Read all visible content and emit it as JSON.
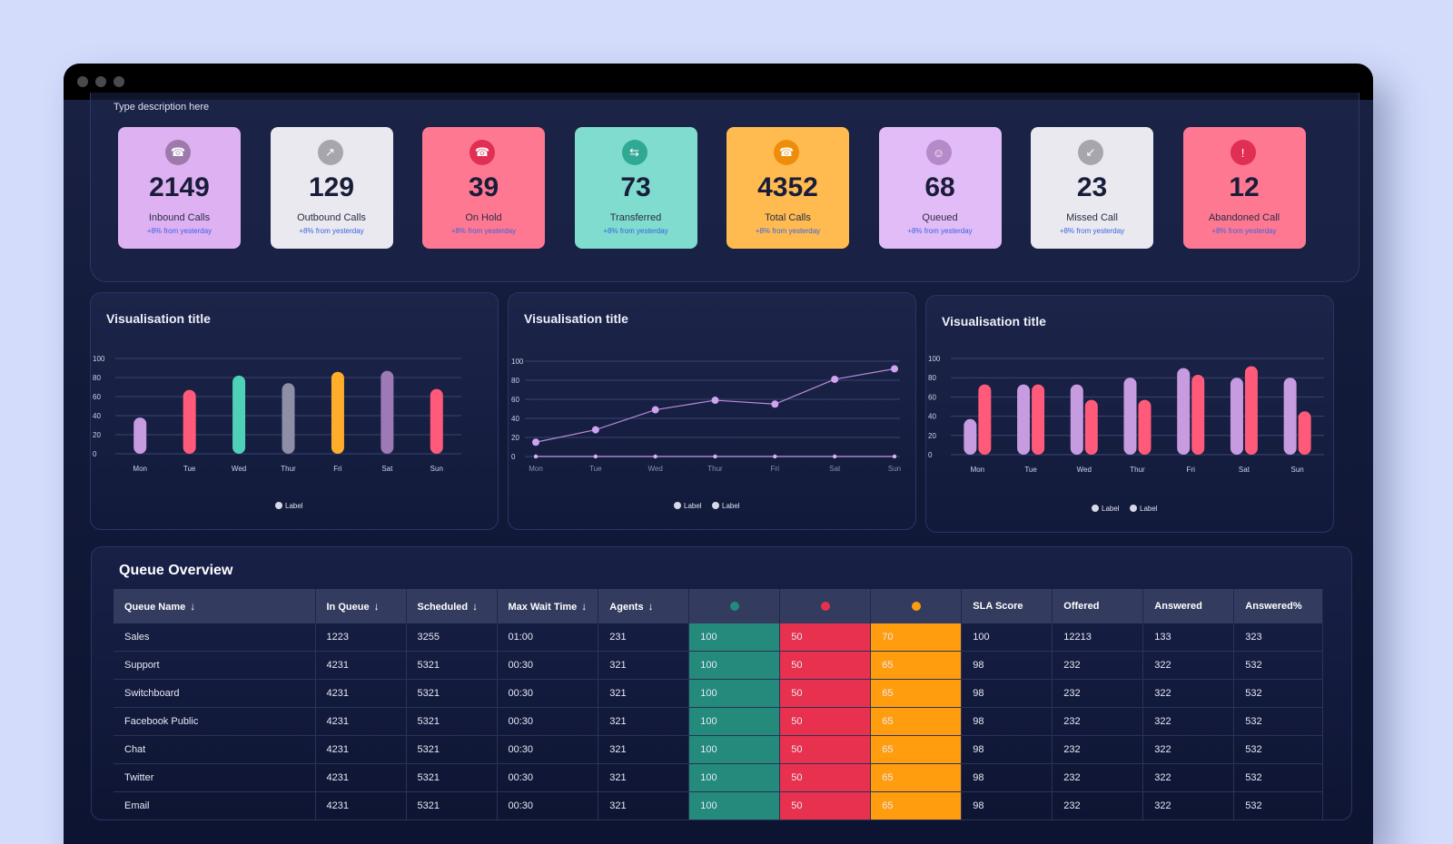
{
  "description": "Type description here",
  "kpis": [
    {
      "value": "2149",
      "label": "Inbound Calls",
      "sub": "+8% from yesterday",
      "bg": "#deb1f3",
      "icon_bg": "#9d7aab",
      "icon": "phone-icon"
    },
    {
      "value": "129",
      "label": "Outbound Calls",
      "sub": "+8% from yesterday",
      "bg": "#e9e9ef",
      "icon_bg": "#a7a6ae",
      "icon": "phone-outgoing-icon"
    },
    {
      "value": "39",
      "label": "On Hold",
      "sub": "+8% from yesterday",
      "bg": "#ff7891",
      "icon_bg": "#e02f52",
      "icon": "phone-hold-icon"
    },
    {
      "value": "73",
      "label": "Transferred",
      "sub": "+8% from yesterday",
      "bg": "#7fdcce",
      "icon_bg": "#2fa894",
      "icon": "transfer-icon"
    },
    {
      "value": "4352",
      "label": "Total Calls",
      "sub": "+8% from yesterday",
      "bg": "#ffbb50",
      "icon_bg": "#ee8d0b",
      "icon": "phone-icon"
    },
    {
      "value": "68",
      "label": "Queued",
      "sub": "+8% from yesterday",
      "bg": "#e2bcf7",
      "icon_bg": "#b58ac9",
      "icon": "users-icon"
    },
    {
      "value": "23",
      "label": "Missed Call",
      "sub": "+8% from yesterday",
      "bg": "#e9e9ef",
      "icon_bg": "#a7a6ae",
      "icon": "phone-missed-icon"
    },
    {
      "value": "12",
      "label": "Abandoned Call",
      "sub": "+8% from yesterday",
      "bg": "#ff7891",
      "icon_bg": "#e02f52",
      "icon": "alert-icon"
    }
  ],
  "chart_data": [
    {
      "type": "bar",
      "title": "Visualisation title",
      "categories": [
        "Mon",
        "Tue",
        "Wed",
        "Thur",
        "Fri",
        "Sat",
        "Sun"
      ],
      "ylim": [
        0,
        100
      ],
      "yticks": [
        0,
        20,
        40,
        60,
        80,
        100
      ],
      "values": [
        38,
        67,
        82,
        74,
        86,
        87,
        68
      ],
      "bar_colors": [
        "#c79be0",
        "#ff5a7a",
        "#4fd1b8",
        "#8e8fa6",
        "#ffad2b",
        "#9d79b5",
        "#ff5a7a"
      ],
      "legend": [
        "Label"
      ],
      "grid": true
    },
    {
      "type": "line",
      "title": "Visualisation title",
      "categories": [
        "Mon",
        "Tue",
        "Wed",
        "Thur",
        "Fri",
        "Sat",
        "Sun"
      ],
      "ylim": [
        0,
        100
      ],
      "yticks": [
        0,
        20,
        40,
        60,
        80,
        100
      ],
      "series": [
        {
          "values": [
            15,
            28,
            49,
            59,
            55,
            81,
            92
          ]
        },
        {
          "values": [
            0,
            0,
            0,
            0,
            0,
            0,
            0
          ]
        }
      ],
      "legend": [
        "Label",
        "Label"
      ],
      "grid": true
    },
    {
      "type": "bar",
      "title": "Visualisation title",
      "categories": [
        "Mon",
        "Tue",
        "Wed",
        "Thur",
        "Fri",
        "Sat",
        "Sun"
      ],
      "ylim": [
        0,
        100
      ],
      "yticks": [
        0,
        20,
        40,
        60,
        80,
        100
      ],
      "series": [
        {
          "values": [
            37,
            73,
            73,
            80,
            90,
            80,
            80
          ]
        },
        {
          "values": [
            73,
            73,
            57,
            57,
            83,
            92,
            45
          ]
        }
      ],
      "series_colors": [
        "#c79be0",
        "#ff5a7a"
      ],
      "legend": [
        "Label",
        "Label"
      ],
      "grid": true
    }
  ],
  "queue": {
    "title": "Queue Overview",
    "headers": [
      "Queue Name",
      "In Queue",
      "Scheduled",
      "Max Wait Time",
      "Agents",
      "",
      "",
      "",
      "SLA Score",
      "Offered",
      "Answered",
      "Answered%"
    ],
    "status_colors": [
      "#238a7c",
      "#e8304f",
      "#ff9d0f"
    ],
    "rows": [
      [
        "Sales",
        "1223",
        "3255",
        "01:00",
        "231",
        "100",
        "50",
        "70",
        "100",
        "12213",
        "133",
        "323"
      ],
      [
        "Support",
        "4231",
        "5321",
        "00:30",
        "321",
        "100",
        "50",
        "65",
        "98",
        "232",
        "322",
        "532"
      ],
      [
        "Switchboard",
        "4231",
        "5321",
        "00:30",
        "321",
        "100",
        "50",
        "65",
        "98",
        "232",
        "322",
        "532"
      ],
      [
        "Facebook Public",
        "4231",
        "5321",
        "00:30",
        "321",
        "100",
        "50",
        "65",
        "98",
        "232",
        "322",
        "532"
      ],
      [
        "Chat",
        "4231",
        "5321",
        "00:30",
        "321",
        "100",
        "50",
        "65",
        "98",
        "232",
        "322",
        "532"
      ],
      [
        "Twitter",
        "4231",
        "5321",
        "00:30",
        "321",
        "100",
        "50",
        "65",
        "98",
        "232",
        "322",
        "532"
      ],
      [
        "Email",
        "4231",
        "5321",
        "00:30",
        "321",
        "100",
        "50",
        "65",
        "98",
        "232",
        "322",
        "532"
      ]
    ]
  }
}
